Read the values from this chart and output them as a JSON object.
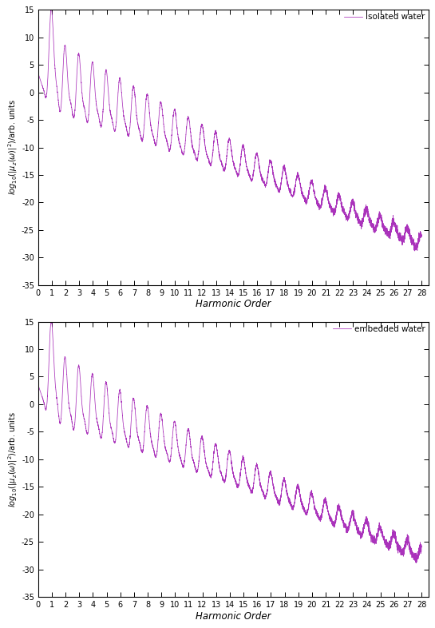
{
  "label_upper": "isolated water",
  "label_lower": "embedded water",
  "ylabel": "$log_{10}(|\\mu_z(\\omega)|^2)$/arb. units",
  "xlabel": "Harmonic Order",
  "line_color": "#aa33bb",
  "ylim": [
    -35,
    15
  ],
  "xlim": [
    0,
    28.5
  ],
  "yticks": [
    -35,
    -30,
    -25,
    -20,
    -15,
    -10,
    -5,
    0,
    5,
    10,
    15
  ],
  "xticks": [
    0,
    1,
    2,
    3,
    4,
    5,
    6,
    7,
    8,
    9,
    10,
    11,
    12,
    13,
    14,
    15,
    16,
    17,
    18,
    19,
    20,
    21,
    22,
    23,
    24,
    25,
    26,
    27,
    28
  ],
  "background_color": "#ffffff",
  "figsize": [
    5.45,
    7.86
  ],
  "dpi": 100
}
